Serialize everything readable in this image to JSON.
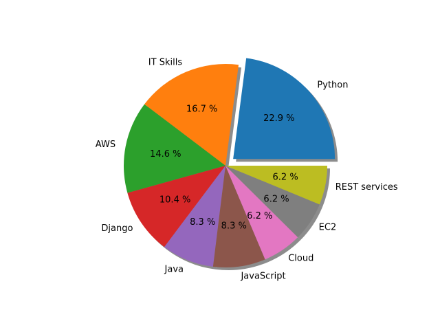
{
  "chart_data": {
    "type": "pie",
    "title": "",
    "categories": [
      "Python",
      "IT Skills",
      "AWS",
      "Django",
      "Java",
      "JavaScript",
      "Cloud",
      "EC2",
      "REST services"
    ],
    "values": [
      22.9,
      16.7,
      14.6,
      10.4,
      8.3,
      8.3,
      6.2,
      6.2,
      6.2
    ],
    "value_labels": [
      "22.9 %",
      "16.7 %",
      "14.6 %",
      "10.4 %",
      "8.3 %",
      "8.3 %",
      "6.2 %",
      "6.2 %",
      "6.2 %"
    ],
    "colors": [
      "#1f77b4",
      "#ff7f0e",
      "#2ca02c",
      "#d62728",
      "#9467bd",
      "#8c564b",
      "#e377c2",
      "#7f7f7f",
      "#bcbd22"
    ],
    "explode": [
      0.1,
      0,
      0,
      0,
      0,
      0,
      0,
      0,
      0
    ],
    "shadow": true,
    "start_angle_deg": 0,
    "direction": "counterclockwise",
    "legend": "none"
  }
}
